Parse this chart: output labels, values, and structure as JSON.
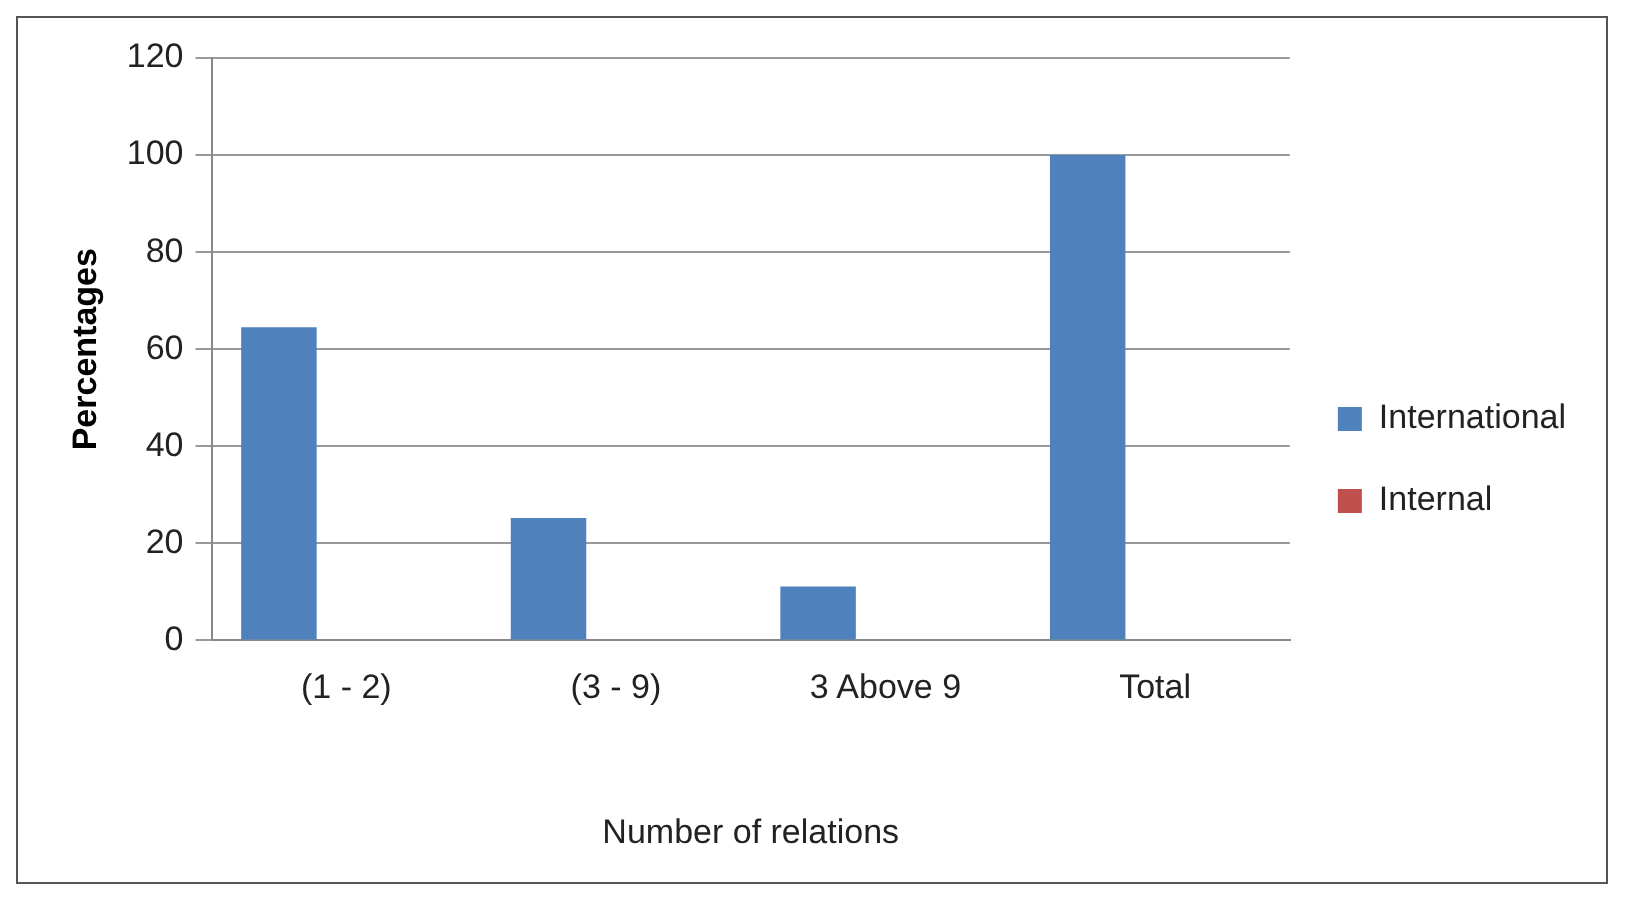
{
  "chart_data": {
    "type": "bar",
    "xlabel": "Number of relations",
    "ylabel": "Percentages",
    "categories": [
      "(1 - 2)",
      "(3 - 9)",
      "3 Above 9",
      "Total"
    ],
    "series": [
      {
        "name": "International",
        "color": "#4f81bd",
        "values": [
          64.5,
          25.2,
          11.1,
          100
        ]
      },
      {
        "name": "Internal",
        "color": "#c0504d",
        "values": [
          0,
          0,
          0,
          0
        ]
      }
    ],
    "ylim": [
      0,
      120
    ],
    "yticks": [
      0,
      20,
      40,
      60,
      80,
      100,
      120
    ],
    "grid": "y",
    "legend": "right"
  }
}
